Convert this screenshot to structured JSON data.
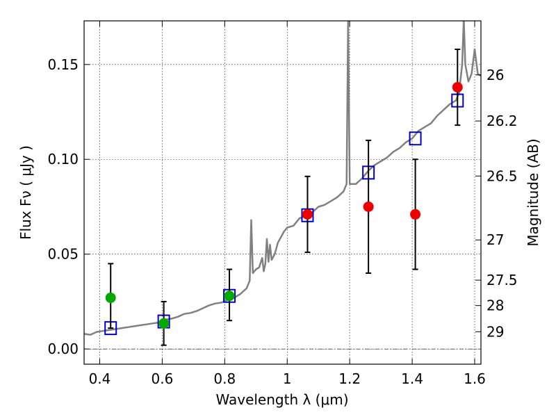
{
  "chart_data": {
    "type": "scatter",
    "xlabel": "Wavelength  λ (μm)",
    "ylabel": "Flux  Fν  ( μJy )",
    "y2label": "Magnitude (AB)",
    "xlim": [
      0.35,
      1.62
    ],
    "ylim": [
      -0.008,
      0.173
    ],
    "grid": true,
    "x_ticks": [
      {
        "value": 0.4,
        "label": "0.4"
      },
      {
        "value": 0.6,
        "label": "0.6"
      },
      {
        "value": 0.8,
        "label": "0.8"
      },
      {
        "value": 1.0,
        "label": "1"
      },
      {
        "value": 1.2,
        "label": "1.2"
      },
      {
        "value": 1.4,
        "label": "1.4"
      },
      {
        "value": 1.6,
        "label": "1.6"
      }
    ],
    "y_ticks": [
      {
        "value": 0.0,
        "label": "0.00"
      },
      {
        "value": 0.05,
        "label": "0.05"
      },
      {
        "value": 0.1,
        "label": "0.10"
      },
      {
        "value": 0.15,
        "label": "0.15"
      }
    ],
    "mag_ticks": [
      {
        "mag": "26",
        "flux": 0.1445
      },
      {
        "mag": "26.2",
        "flux": 0.1202
      },
      {
        "mag": "26.5",
        "flux": 0.0912
      },
      {
        "mag": "27",
        "flux": 0.0575
      },
      {
        "mag": "27.5",
        "flux": 0.0363
      },
      {
        "mag": "28",
        "flux": 0.0229
      },
      {
        "mag": "29",
        "flux": 0.0091
      }
    ],
    "series": [
      {
        "kind": "line",
        "color": "#808080",
        "points": [
          [
            0.35,
            0.008
          ],
          [
            0.37,
            0.0075
          ],
          [
            0.39,
            0.009
          ],
          [
            0.41,
            0.0095
          ],
          [
            0.43,
            0.01
          ],
          [
            0.45,
            0.0105
          ],
          [
            0.47,
            0.011
          ],
          [
            0.49,
            0.0115
          ],
          [
            0.51,
            0.012
          ],
          [
            0.53,
            0.0125
          ],
          [
            0.55,
            0.013
          ],
          [
            0.57,
            0.0135
          ],
          [
            0.59,
            0.014
          ],
          [
            0.61,
            0.0155
          ],
          [
            0.63,
            0.016
          ],
          [
            0.65,
            0.017
          ],
          [
            0.67,
            0.0185
          ],
          [
            0.69,
            0.019
          ],
          [
            0.71,
            0.02
          ],
          [
            0.73,
            0.0215
          ],
          [
            0.75,
            0.023
          ],
          [
            0.77,
            0.024
          ],
          [
            0.79,
            0.0245
          ],
          [
            0.81,
            0.026
          ],
          [
            0.83,
            0.027
          ],
          [
            0.85,
            0.029
          ],
          [
            0.87,
            0.032
          ],
          [
            0.88,
            0.036
          ],
          [
            0.885,
            0.068
          ],
          [
            0.89,
            0.04
          ],
          [
            0.9,
            0.042
          ],
          [
            0.91,
            0.043
          ],
          [
            0.92,
            0.048
          ],
          [
            0.925,
            0.041
          ],
          [
            0.93,
            0.045
          ],
          [
            0.935,
            0.058
          ],
          [
            0.94,
            0.046
          ],
          [
            0.945,
            0.055
          ],
          [
            0.95,
            0.047
          ],
          [
            0.96,
            0.05
          ],
          [
            0.97,
            0.056
          ],
          [
            0.98,
            0.059
          ],
          [
            0.99,
            0.062
          ],
          [
            1.0,
            0.064
          ],
          [
            1.02,
            0.065
          ],
          [
            1.04,
            0.069
          ],
          [
            1.06,
            0.07
          ],
          [
            1.08,
            0.072
          ],
          [
            1.1,
            0.075
          ],
          [
            1.12,
            0.076
          ],
          [
            1.14,
            0.078
          ],
          [
            1.16,
            0.08
          ],
          [
            1.18,
            0.083
          ],
          [
            1.19,
            0.087
          ],
          [
            1.195,
            0.174
          ],
          [
            1.2,
            0.087
          ],
          [
            1.22,
            0.087
          ],
          [
            1.24,
            0.09
          ],
          [
            1.26,
            0.094
          ],
          [
            1.28,
            0.097
          ],
          [
            1.3,
            0.099
          ],
          [
            1.32,
            0.101
          ],
          [
            1.34,
            0.104
          ],
          [
            1.36,
            0.106
          ],
          [
            1.38,
            0.109
          ],
          [
            1.4,
            0.111
          ],
          [
            1.42,
            0.115
          ],
          [
            1.44,
            0.117
          ],
          [
            1.46,
            0.119
          ],
          [
            1.48,
            0.123
          ],
          [
            1.5,
            0.126
          ],
          [
            1.52,
            0.129
          ],
          [
            1.54,
            0.131
          ],
          [
            1.55,
            0.135
          ],
          [
            1.56,
            0.15
          ],
          [
            1.565,
            0.174
          ],
          [
            1.57,
            0.15
          ],
          [
            1.58,
            0.141
          ],
          [
            1.59,
            0.145
          ],
          [
            1.6,
            0.158
          ],
          [
            1.61,
            0.145
          ],
          [
            1.62,
            0.144
          ]
        ]
      },
      {
        "kind": "scatter",
        "marker": "square",
        "color": "#0000cc",
        "points": [
          [
            0.435,
            0.011
          ],
          [
            0.605,
            0.0145
          ],
          [
            0.815,
            0.028
          ],
          [
            1.065,
            0.0705
          ],
          [
            1.26,
            0.093
          ],
          [
            1.41,
            0.111
          ],
          [
            1.545,
            0.131
          ]
        ]
      },
      {
        "kind": "errorbar",
        "marker": "circle",
        "color": "#00aa00",
        "points": [
          {
            "x": 0.435,
            "y": 0.027,
            "lo": 0.011,
            "hi": 0.045
          },
          {
            "x": 0.605,
            "y": 0.0135,
            "lo": 0.002,
            "hi": 0.025
          },
          {
            "x": 0.815,
            "y": 0.028,
            "lo": 0.015,
            "hi": 0.042
          }
        ]
      },
      {
        "kind": "errorbar",
        "marker": "circle",
        "color": "#ee0000",
        "points": [
          {
            "x": 1.065,
            "y": 0.071,
            "lo": 0.051,
            "hi": 0.091
          },
          {
            "x": 1.26,
            "y": 0.075,
            "lo": 0.04,
            "hi": 0.11
          },
          {
            "x": 1.41,
            "y": 0.071,
            "lo": 0.042,
            "hi": 0.1
          },
          {
            "x": 1.545,
            "y": 0.138,
            "lo": 0.118,
            "hi": 0.158
          }
        ]
      }
    ]
  }
}
